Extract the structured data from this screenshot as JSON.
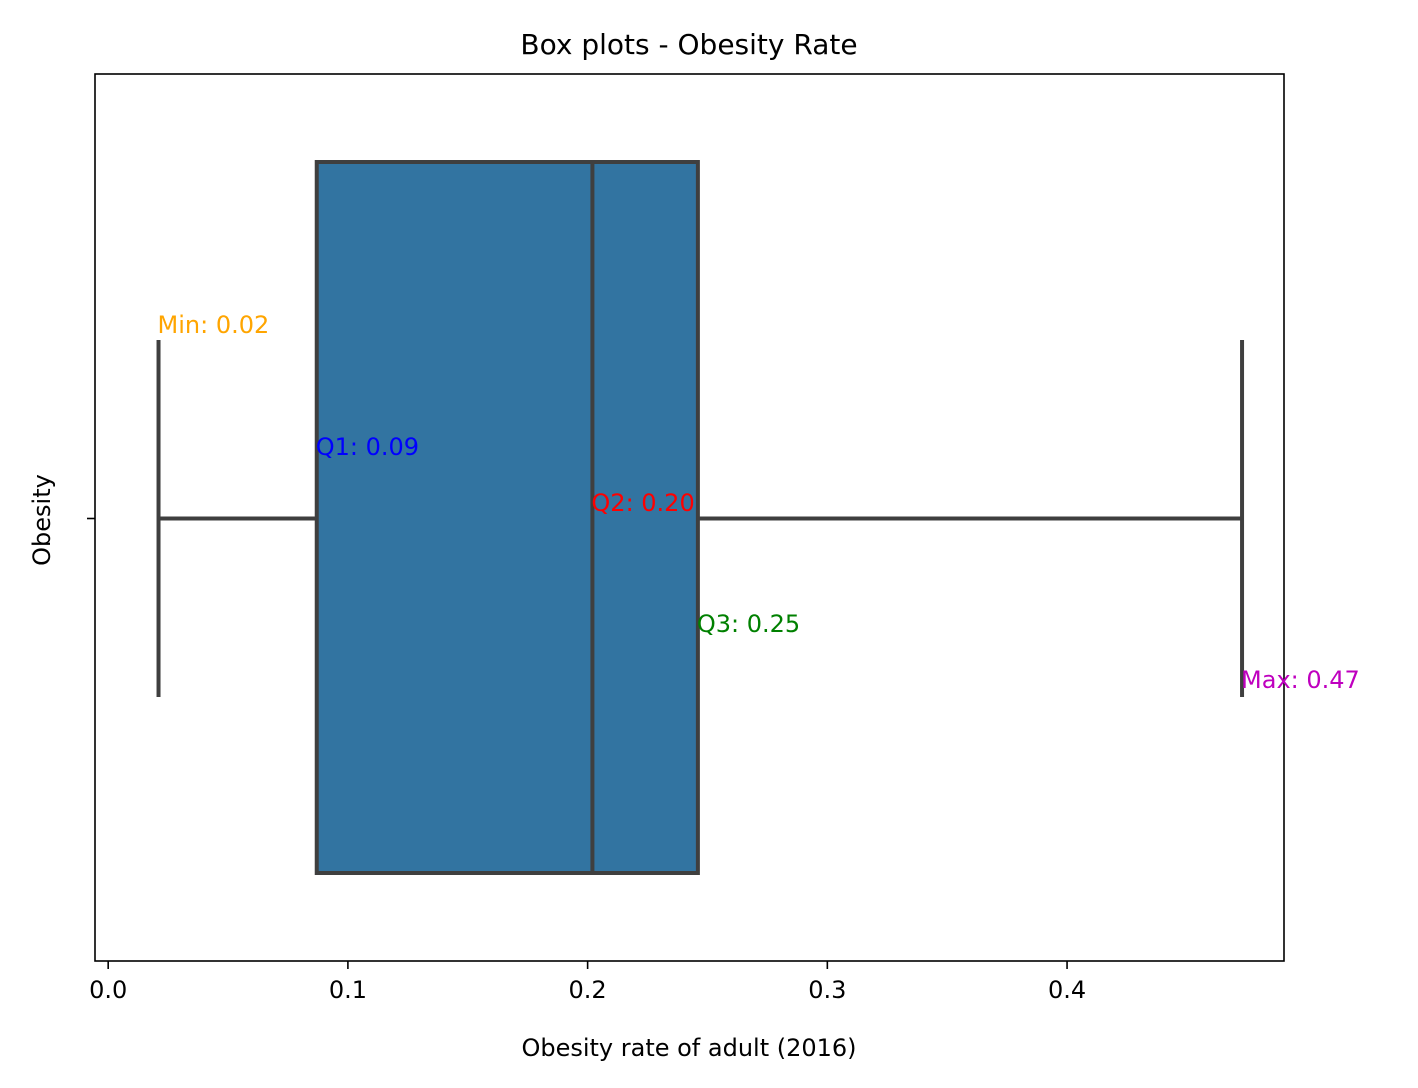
{
  "chart_data": {
    "type": "box",
    "title": "Box plots - Obesity Rate",
    "xlabel": "Obesity rate of adult (2016)",
    "ylabel": "Obesity",
    "xlim": [
      -0.0055,
      0.4905
    ],
    "xticks": [
      0.0,
      0.1,
      0.2,
      0.3,
      0.4
    ],
    "xtick_labels": [
      "0.0",
      "0.1",
      "0.2",
      "0.3",
      "0.4"
    ],
    "grid": false,
    "box_color": "#3274a1",
    "line_color": "#3f3f3f",
    "stats": {
      "min": 0.021,
      "q1": 0.087,
      "median": 0.202,
      "q3": 0.246,
      "max": 0.473
    },
    "annotations": [
      {
        "key": "min",
        "text": "Min: 0.02",
        "color": "#ffa500"
      },
      {
        "key": "q1",
        "text": "Q1: 0.09",
        "color": "#0000ff"
      },
      {
        "key": "median",
        "text": "Q2: 0.20",
        "color": "#ff0000"
      },
      {
        "key": "q3",
        "text": "Q3: 0.25",
        "color": "#008000"
      },
      {
        "key": "max",
        "text": "Max: 0.47",
        "color": "#bf00bf"
      }
    ]
  }
}
